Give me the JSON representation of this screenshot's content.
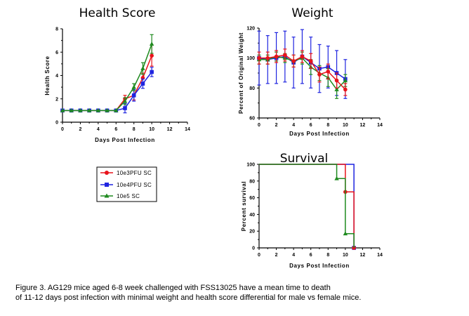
{
  "legend": {
    "entries": [
      {
        "label": "10e3PFU SC",
        "color": "#e8131b",
        "marker": "circle"
      },
      {
        "label": "10e4PFU SC",
        "color": "#1f24e0",
        "marker": "square"
      },
      {
        "label": "10e5 SC",
        "color": "#1f8a1f",
        "marker": "triangle"
      }
    ]
  },
  "caption": {
    "line1": "Figure 3. AG129 mice aged 6-8 week challenged with FSS13025 have a mean time to death",
    "line2": " of 11-12 days post infection with minimal weight and health score differential for male vs female mice."
  },
  "chart_data": [
    {
      "id": "health",
      "type": "line",
      "title": "Health Score",
      "xlabel": "Days Post Infection",
      "ylabel": "Health Score",
      "xlim": [
        0,
        14
      ],
      "ylim": [
        0,
        8
      ],
      "xticks": [
        0,
        2,
        4,
        6,
        8,
        10,
        12,
        14
      ],
      "yticks": [
        0,
        2,
        4,
        6,
        8
      ],
      "x": [
        0,
        1,
        2,
        3,
        4,
        5,
        6,
        7,
        8,
        9,
        10
      ],
      "series": [
        {
          "name": "10e3PFU SC",
          "color": "#e8131b",
          "marker": "circle",
          "values": [
            1,
            1,
            1,
            1,
            1,
            1,
            1,
            2.0,
            2.3,
            3.8,
            5.7
          ],
          "errors": [
            0,
            0,
            0,
            0,
            0,
            0,
            0,
            0.3,
            0.4,
            0.4,
            0.9
          ]
        },
        {
          "name": "10e4PFU SC",
          "color": "#1f24e0",
          "marker": "square",
          "values": [
            1,
            1,
            1,
            1,
            1,
            1,
            1,
            1.2,
            2.3,
            3.3,
            4.3
          ],
          "errors": [
            0,
            0,
            0,
            0,
            0,
            0,
            0,
            0.4,
            0.5,
            0.4,
            0.4
          ]
        },
        {
          "name": "10e5 SC",
          "color": "#1f8a1f",
          "marker": "triangle",
          "values": [
            1,
            1,
            1,
            1,
            1,
            1,
            1,
            1.8,
            3.0,
            4.6,
            6.7
          ],
          "errors": [
            0,
            0,
            0,
            0,
            0,
            0,
            0,
            0.3,
            0.3,
            0.5,
            0.8
          ]
        }
      ]
    },
    {
      "id": "weight",
      "type": "line",
      "title": "Weight",
      "xlabel": "Days Post Infection",
      "ylabel": "Percent of Original Weight",
      "xlim": [
        0,
        14
      ],
      "ylim": [
        60,
        120
      ],
      "xticks": [
        0,
        2,
        4,
        6,
        8,
        10,
        12,
        14
      ],
      "yticks": [
        60,
        80,
        100,
        120
      ],
      "x": [
        0,
        1,
        2,
        3,
        4,
        5,
        6,
        7,
        8,
        9,
        10
      ],
      "series": [
        {
          "name": "10e4PFU SC",
          "color": "#1f24e0",
          "marker": "square",
          "values": [
            100,
            99,
            100,
            101,
            97,
            101,
            97,
            93,
            94,
            90,
            86
          ],
          "errors": [
            18,
            16,
            17,
            17,
            17,
            18,
            17,
            16,
            14,
            15,
            13
          ]
        },
        {
          "name": "10e5 SC",
          "color": "#1f8a1f",
          "marker": "triangle",
          "values": [
            99,
            99,
            101,
            100,
            98,
            100,
            94,
            90,
            87,
            79,
            85
          ],
          "errors": [
            3,
            3,
            3,
            3,
            4,
            4,
            5,
            5,
            6,
            6,
            4
          ]
        },
        {
          "name": "10e3PFU SC",
          "color": "#e8131b",
          "marker": "circle",
          "values": [
            100,
            100,
            101,
            102,
            98,
            101,
            98,
            89,
            91,
            85,
            79
          ],
          "errors": [
            4,
            4,
            4,
            4,
            4,
            4,
            5,
            5,
            5,
            5,
            4
          ]
        }
      ]
    },
    {
      "id": "survival",
      "type": "line",
      "step": true,
      "title": "Survival",
      "xlabel": "Days Post Infection",
      "ylabel": "Percent survival",
      "xlim": [
        0,
        14
      ],
      "ylim": [
        0,
        100
      ],
      "xticks": [
        0,
        2,
        4,
        6,
        8,
        10,
        12,
        14
      ],
      "yticks": [
        0,
        20,
        40,
        60,
        80,
        100
      ],
      "series": [
        {
          "name": "10e4PFU SC",
          "color": "#1f24e0",
          "marker": "square",
          "x": [
            0,
            11,
            11
          ],
          "values": [
            100,
            100,
            0
          ],
          "markers_at": [
            [
              11,
              0
            ]
          ]
        },
        {
          "name": "10e3PFU SC",
          "color": "#e8131b",
          "marker": "circle",
          "x": [
            0,
            10,
            10,
            11,
            11
          ],
          "values": [
            100,
            100,
            67,
            67,
            0
          ],
          "markers_at": [
            [
              10,
              67
            ],
            [
              11,
              0
            ]
          ]
        },
        {
          "name": "10e5 SC",
          "color": "#1f8a1f",
          "marker": "triangle",
          "x": [
            0,
            9,
            9,
            10,
            10,
            11,
            11
          ],
          "values": [
            100,
            100,
            83,
            83,
            17,
            17,
            0
          ],
          "markers_at": [
            [
              9,
              83
            ],
            [
              10,
              17
            ]
          ]
        }
      ]
    }
  ]
}
